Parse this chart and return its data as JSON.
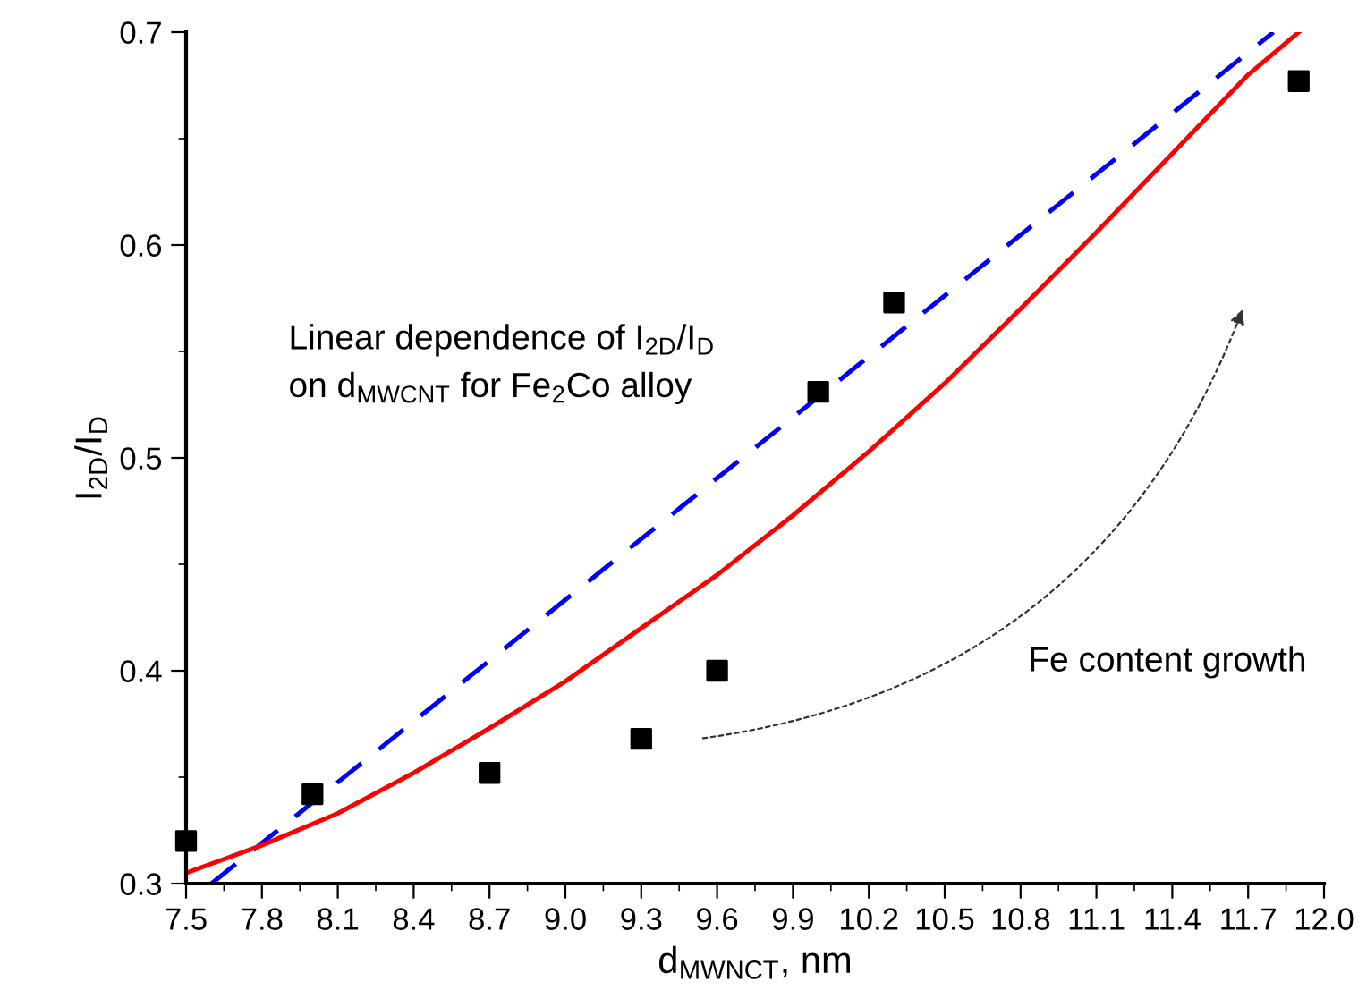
{
  "chart_data": {
    "type": "scatter",
    "xlabel": "d$_{MWNCT}$, nm",
    "ylabel": "I$_{2D}$/I$_{D}$",
    "xlim": [
      7.5,
      12.0
    ],
    "ylim": [
      0.3,
      0.7
    ],
    "xticks": [
      7.5,
      7.8,
      8.1,
      8.4,
      8.7,
      {
        "value": 9.0,
        "label": "9.0"
      },
      9.3,
      9.6,
      9.9,
      10.2,
      10.5,
      10.8,
      11.1,
      11.4,
      11.7,
      {
        "value": 12.0,
        "label": "12.0"
      }
    ],
    "yticks": [
      0.3,
      0.4,
      0.5,
      0.6,
      0.7
    ],
    "grid": false,
    "legend": false,
    "series": [
      {
        "marker": "square",
        "color": "#000000",
        "x": [
          7.5,
          8.0,
          8.7,
          9.3,
          9.6,
          10.0,
          10.3,
          11.9
        ],
        "values": [
          0.32,
          0.342,
          0.352,
          0.368,
          0.4,
          0.531,
          0.573,
          0.677
        ]
      },
      {
        "type": "line",
        "color": "#0000ff",
        "line_style": "dashed",
        "x": [
          7.6,
          11.8
        ],
        "values": [
          0.3,
          0.7
        ]
      },
      {
        "type": "line",
        "color": "#ff0000",
        "line_style": "solid",
        "x": [
          7.5,
          7.8,
          8.1,
          8.4,
          8.7,
          9.0,
          9.3,
          9.6,
          9.9,
          10.2,
          10.5,
          10.8,
          11.1,
          11.4,
          11.7,
          11.9
        ],
        "values": [
          0.305,
          0.318,
          0.333,
          0.352,
          0.373,
          0.395,
          0.42,
          0.445,
          0.473,
          0.503,
          0.535,
          0.57,
          0.606,
          0.643,
          0.68,
          0.7
        ]
      }
    ],
    "annotations": [
      "Linear dependence of I$_{2D}$/I$_{D}$\non d$_{MWCNT}$ for Fe$_{2}$Co alloy",
      "Fe content growth"
    ]
  }
}
